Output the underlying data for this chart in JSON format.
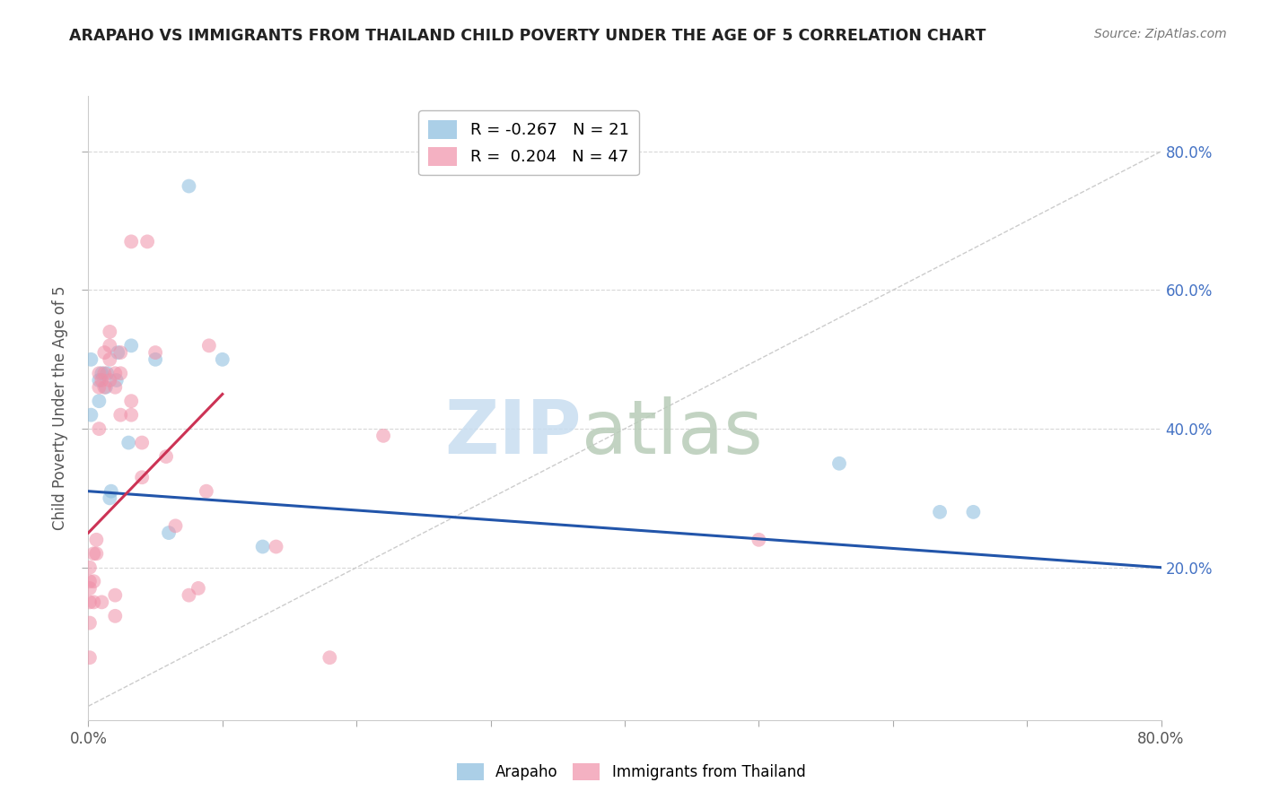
{
  "title": "ARAPAHO VS IMMIGRANTS FROM THAILAND CHILD POVERTY UNDER THE AGE OF 5 CORRELATION CHART",
  "source": "Source: ZipAtlas.com",
  "ylabel": "Child Poverty Under the Age of 5",
  "xlim": [
    0,
    0.8
  ],
  "ylim": [
    -0.02,
    0.88
  ],
  "legend_r_blue": "-0.267",
  "legend_n_blue": "21",
  "legend_r_pink": "0.204",
  "legend_n_pink": "47",
  "blue_color": "#88bbdd",
  "pink_color": "#f090a8",
  "blue_trend_color": "#2255aa",
  "pink_trend_color": "#cc3355",
  "diagonal_color": "#cccccc",
  "blue_points_x": [
    0.002,
    0.002,
    0.008,
    0.008,
    0.01,
    0.013,
    0.014,
    0.016,
    0.017,
    0.021,
    0.022,
    0.03,
    0.032,
    0.05,
    0.06,
    0.075,
    0.1,
    0.13,
    0.56,
    0.635,
    0.66
  ],
  "blue_points_y": [
    0.42,
    0.5,
    0.44,
    0.47,
    0.48,
    0.46,
    0.48,
    0.3,
    0.31,
    0.47,
    0.51,
    0.38,
    0.52,
    0.5,
    0.25,
    0.75,
    0.5,
    0.23,
    0.35,
    0.28,
    0.28
  ],
  "pink_points_x": [
    0.001,
    0.001,
    0.001,
    0.001,
    0.001,
    0.001,
    0.004,
    0.004,
    0.004,
    0.006,
    0.006,
    0.008,
    0.008,
    0.008,
    0.01,
    0.01,
    0.012,
    0.012,
    0.012,
    0.016,
    0.016,
    0.016,
    0.016,
    0.02,
    0.02,
    0.02,
    0.02,
    0.024,
    0.024,
    0.024,
    0.032,
    0.032,
    0.032,
    0.04,
    0.04,
    0.044,
    0.05,
    0.058,
    0.065,
    0.075,
    0.082,
    0.088,
    0.09,
    0.14,
    0.18,
    0.22,
    0.5
  ],
  "pink_points_y": [
    0.07,
    0.12,
    0.15,
    0.17,
    0.18,
    0.2,
    0.15,
    0.18,
    0.22,
    0.22,
    0.24,
    0.4,
    0.46,
    0.48,
    0.15,
    0.47,
    0.46,
    0.48,
    0.51,
    0.47,
    0.5,
    0.52,
    0.54,
    0.13,
    0.16,
    0.46,
    0.48,
    0.42,
    0.48,
    0.51,
    0.42,
    0.44,
    0.67,
    0.33,
    0.38,
    0.67,
    0.51,
    0.36,
    0.26,
    0.16,
    0.17,
    0.31,
    0.52,
    0.23,
    0.07,
    0.39,
    0.24
  ],
  "blue_trend_x": [
    0.0,
    0.8
  ],
  "blue_trend_y": [
    0.31,
    0.2
  ],
  "pink_trend_x": [
    0.0,
    0.1
  ],
  "pink_trend_y": [
    0.25,
    0.45
  ],
  "watermark_zip_color": "#c8ddf0",
  "watermark_atlas_color": "#b8ccb8",
  "grid_color": "#d8d8d8",
  "spine_color": "#cccccc",
  "tick_color": "#aaaaaa",
  "right_tick_color": "#4472c4"
}
